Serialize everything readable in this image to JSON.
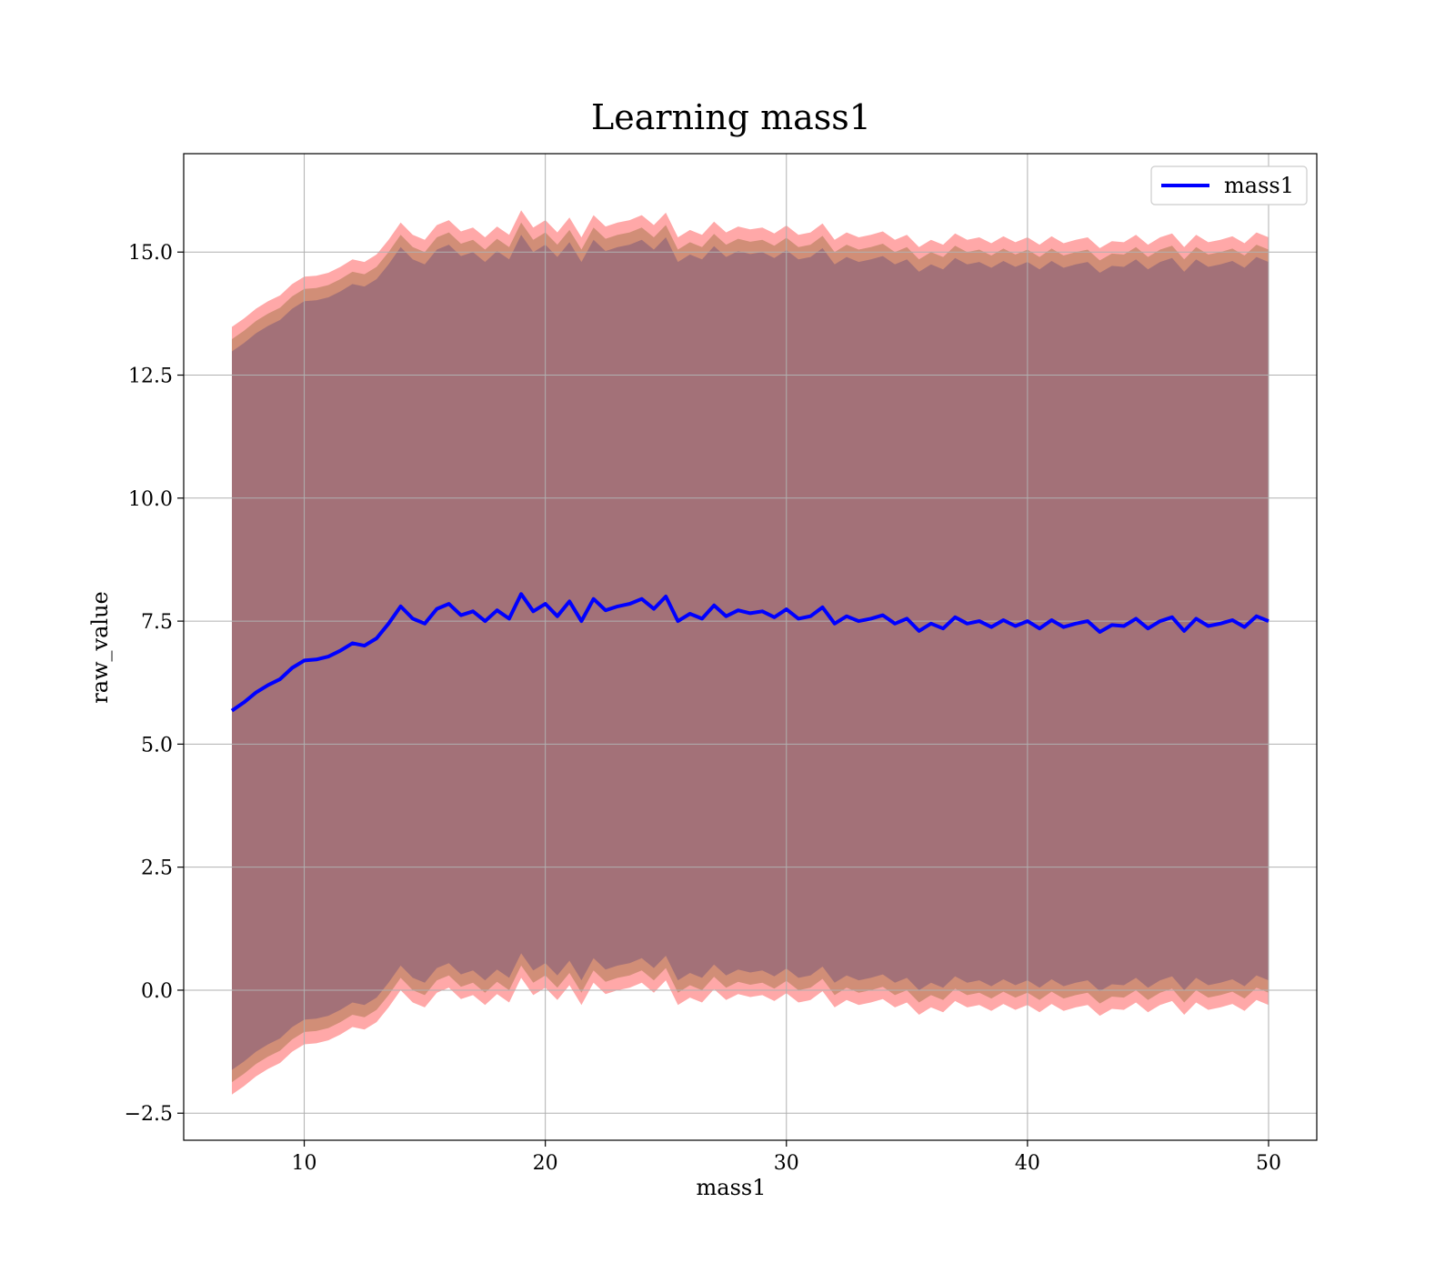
{
  "chart_data": {
    "type": "line",
    "title": "Learning mass1",
    "xlabel": "mass1",
    "ylabel": "raw_value",
    "xlim": [
      5,
      52
    ],
    "ylim": [
      -3.05,
      17.0
    ],
    "x_ticks": [
      10,
      20,
      30,
      40,
      50
    ],
    "x_tick_labels": [
      "10",
      "20",
      "30",
      "40",
      "50"
    ],
    "y_ticks": [
      -2.5,
      0.0,
      2.5,
      5.0,
      7.5,
      10.0,
      12.5,
      15.0
    ],
    "y_tick_labels": [
      "−2.5",
      "0.0",
      "2.5",
      "5.0",
      "7.5",
      "10.0",
      "12.5",
      "15.0"
    ],
    "grid": true,
    "legend": {
      "position": "top-right",
      "entries": [
        "mass1"
      ]
    },
    "colors": {
      "line": "#0000ff",
      "band_outer": "#ff9999",
      "band_middle": "#c98a6e",
      "band_inner": "#a07078",
      "grid": "#b0b0b0"
    },
    "series": [
      {
        "name": "mass1",
        "x": [
          7.0,
          7.5,
          8.0,
          8.5,
          9.0,
          9.5,
          10.0,
          10.5,
          11.0,
          11.5,
          12.0,
          12.5,
          13.0,
          13.5,
          14.0,
          14.5,
          15.0,
          15.5,
          16.0,
          16.5,
          17.0,
          17.5,
          18.0,
          18.5,
          19.0,
          19.5,
          20.0,
          20.5,
          21.0,
          21.5,
          22.0,
          22.5,
          23.0,
          23.5,
          24.0,
          24.5,
          25.0,
          25.5,
          26.0,
          26.5,
          27.0,
          27.5,
          28.0,
          28.5,
          29.0,
          29.5,
          30.0,
          30.5,
          31.0,
          31.5,
          32.0,
          32.5,
          33.0,
          33.5,
          34.0,
          34.5,
          35.0,
          35.5,
          36.0,
          36.5,
          37.0,
          37.5,
          38.0,
          38.5,
          39.0,
          39.5,
          40.0,
          40.5,
          41.0,
          41.5,
          42.0,
          42.5,
          43.0,
          43.5,
          44.0,
          44.5,
          45.0,
          45.5,
          46.0,
          46.5,
          47.0,
          47.5,
          48.0,
          48.5,
          49.0,
          49.5,
          50.0
        ],
        "y": [
          5.68,
          5.85,
          6.05,
          6.2,
          6.32,
          6.55,
          6.7,
          6.72,
          6.78,
          6.9,
          7.05,
          7.0,
          7.15,
          7.45,
          7.8,
          7.55,
          7.45,
          7.75,
          7.85,
          7.62,
          7.7,
          7.5,
          7.72,
          7.55,
          8.05,
          7.7,
          7.85,
          7.6,
          7.9,
          7.5,
          7.95,
          7.72,
          7.8,
          7.85,
          7.95,
          7.75,
          8.0,
          7.5,
          7.65,
          7.55,
          7.82,
          7.6,
          7.72,
          7.66,
          7.7,
          7.58,
          7.74,
          7.55,
          7.6,
          7.78,
          7.45,
          7.6,
          7.5,
          7.55,
          7.62,
          7.45,
          7.55,
          7.3,
          7.45,
          7.35,
          7.58,
          7.45,
          7.5,
          7.38,
          7.52,
          7.4,
          7.5,
          7.35,
          7.52,
          7.38,
          7.45,
          7.5,
          7.28,
          7.42,
          7.4,
          7.55,
          7.35,
          7.5,
          7.58,
          7.3,
          7.55,
          7.4,
          7.45,
          7.52,
          7.38,
          7.6,
          7.5
        ],
        "band_half_widths": [
          7.3,
          7.55,
          7.8
        ]
      }
    ]
  }
}
